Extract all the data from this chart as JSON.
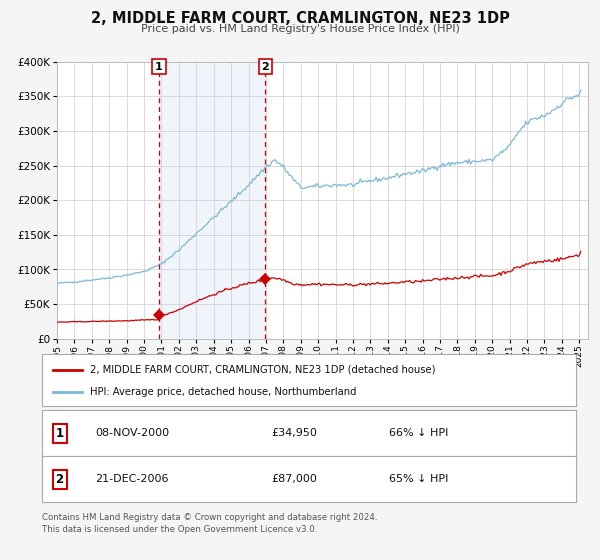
{
  "title": "2, MIDDLE FARM COURT, CRAMLINGTON, NE23 1DP",
  "subtitle": "Price paid vs. HM Land Registry's House Price Index (HPI)",
  "legend_line1": "2, MIDDLE FARM COURT, CRAMLINGTON, NE23 1DP (detached house)",
  "legend_line2": "HPI: Average price, detached house, Northumberland",
  "transaction1_date": "08-NOV-2000",
  "transaction1_price": 34950,
  "transaction1_price_str": "£34,950",
  "transaction1_pct": "66% ↓ HPI",
  "transaction2_date": "21-DEC-2006",
  "transaction2_price": 87000,
  "transaction2_price_str": "£87,000",
  "transaction2_pct": "65% ↓ HPI",
  "footer1": "Contains HM Land Registry data © Crown copyright and database right 2024.",
  "footer2": "This data is licensed under the Open Government Licence v3.0.",
  "hpi_color": "#7ab8d9",
  "price_color": "#cc0000",
  "shade_color": "#ddeeff",
  "vline_color": "#cc0000",
  "background_color": "#f5f5f5",
  "plot_background": "#ffffff",
  "grid_color": "#cccccc",
  "ylim": [
    0,
    400000
  ],
  "xlim_start": 1995.0,
  "xlim_end": 2025.5,
  "transaction1_x": 2000.86,
  "transaction2_x": 2006.97
}
